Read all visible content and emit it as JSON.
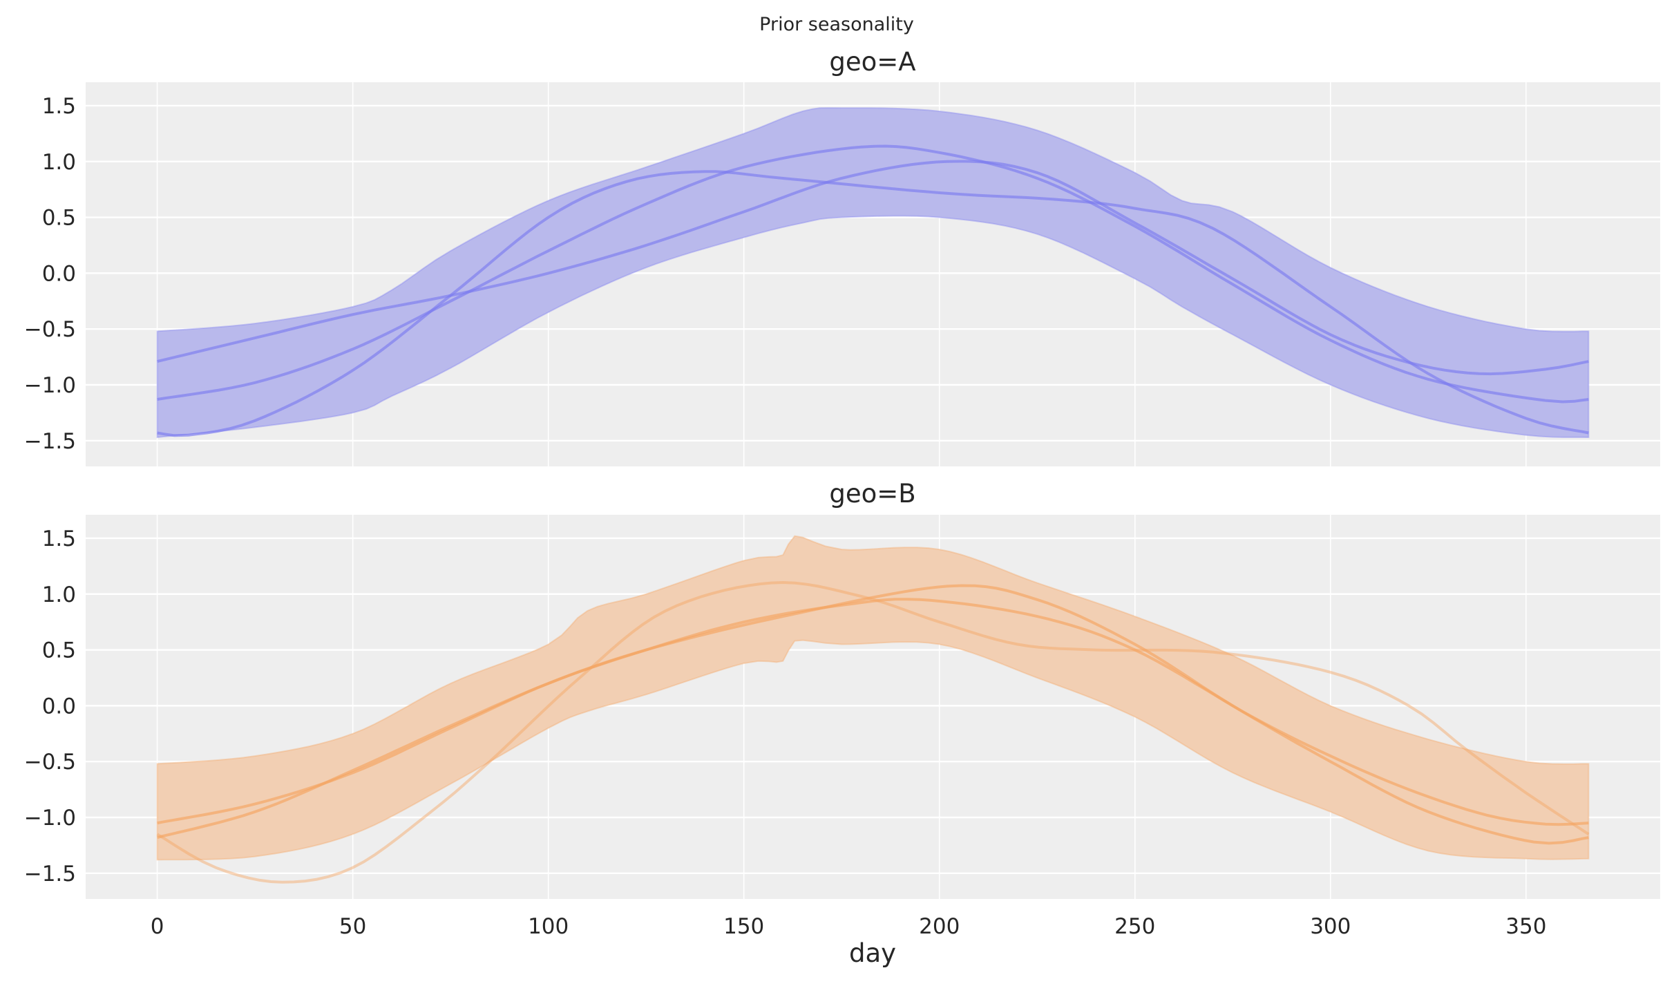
{
  "chart_data": [
    {
      "type": "line",
      "title": "geo=A",
      "figure_title": "Prior seasonality",
      "xlabel": "",
      "ylabel": "",
      "xlim": [
        -18.3,
        384.3
      ],
      "ylim": [
        -1.73,
        1.71
      ],
      "xticks": [
        0,
        50,
        100,
        150,
        200,
        250,
        300,
        350
      ],
      "yticks": [
        -1.5,
        -1.0,
        -0.5,
        0.0,
        0.5,
        1.0,
        1.5
      ],
      "ytick_labels": [
        "−1.5",
        "−1.0",
        "−0.5",
        "0.0",
        "0.5",
        "1.0",
        "1.5"
      ],
      "show_xtick_labels": false,
      "grid": true,
      "color": "#7b7bf0",
      "band_color": "#b9b9ec",
      "band": {
        "x": [
          0,
          25,
          50,
          60,
          75,
          100,
          125,
          150,
          165,
          175,
          200,
          225,
          250,
          262,
          275,
          300,
          325,
          350,
          366
        ],
        "lower": [
          -1.47,
          -1.38,
          -1.25,
          -1.1,
          -0.85,
          -0.35,
          0.05,
          0.32,
          0.45,
          0.5,
          0.5,
          0.35,
          -0.05,
          -0.3,
          -0.55,
          -1.0,
          -1.3,
          -1.45,
          -1.47
        ],
        "upper": [
          -0.52,
          -0.45,
          -0.3,
          -0.15,
          0.2,
          0.65,
          0.95,
          1.25,
          1.45,
          1.48,
          1.45,
          1.28,
          0.9,
          0.65,
          0.55,
          0.05,
          -0.3,
          -0.5,
          -0.52
        ]
      },
      "series": [
        {
          "x": [
            0,
            25,
            50,
            75,
            100,
            125,
            150,
            175,
            202,
            225,
            250,
            275,
            300,
            320,
            338,
            355,
            366
          ],
          "y": [
            -0.79,
            -0.58,
            -0.37,
            -0.2,
            0.0,
            0.25,
            0.55,
            0.85,
            1.0,
            0.9,
            0.45,
            -0.05,
            -0.55,
            -0.8,
            -0.9,
            -0.86,
            -0.79
          ]
        },
        {
          "x": [
            0,
            25,
            50,
            75,
            100,
            125,
            150,
            180,
            200,
            225,
            250,
            275,
            300,
            325,
            355,
            366
          ],
          "y": [
            -1.13,
            -0.98,
            -0.68,
            -0.25,
            0.2,
            0.62,
            0.95,
            1.13,
            1.08,
            0.85,
            0.42,
            -0.1,
            -0.6,
            -0.95,
            -1.14,
            -1.13
          ]
        },
        {
          "x": [
            0,
            8,
            25,
            50,
            75,
            100,
            120,
            140,
            160,
            200,
            230,
            250,
            270,
            300,
            325,
            350,
            366
          ],
          "y": [
            -1.43,
            -1.45,
            -1.32,
            -0.87,
            -0.2,
            0.5,
            0.82,
            0.91,
            0.85,
            0.72,
            0.66,
            0.58,
            0.4,
            -0.3,
            -0.9,
            -1.3,
            -1.43
          ]
        }
      ]
    },
    {
      "type": "line",
      "title": "geo=B",
      "xlabel": "day",
      "ylabel": "",
      "xlim": [
        -18.3,
        384.3
      ],
      "ylim": [
        -1.73,
        1.71
      ],
      "xticks": [
        0,
        50,
        100,
        150,
        200,
        250,
        300,
        350
      ],
      "yticks": [
        -1.5,
        -1.0,
        -0.5,
        0.0,
        0.5,
        1.0,
        1.5
      ],
      "ytick_labels": [
        "−1.5",
        "−1.0",
        "−0.5",
        "0.0",
        "0.5",
        "1.0",
        "1.5"
      ],
      "show_xtick_labels": true,
      "grid": true,
      "color": "#f4a461",
      "band_color": "#f2cfb3",
      "band": {
        "x": [
          0,
          25,
          50,
          75,
          100,
          110,
          125,
          150,
          160,
          163,
          175,
          200,
          225,
          250,
          275,
          300,
          325,
          350,
          366
        ],
        "lower": [
          -1.38,
          -1.35,
          -1.15,
          -0.7,
          -0.2,
          -0.05,
          0.1,
          0.38,
          0.4,
          0.58,
          0.55,
          0.55,
          0.25,
          -0.1,
          -0.6,
          -0.95,
          -1.3,
          -1.37,
          -1.37
        ],
        "upper": [
          -0.52,
          -0.45,
          -0.25,
          0.2,
          0.55,
          0.85,
          1.0,
          1.3,
          1.35,
          1.52,
          1.4,
          1.4,
          1.1,
          0.8,
          0.45,
          0.0,
          -0.3,
          -0.5,
          -0.52
        ]
      },
      "series": [
        {
          "x": [
            0,
            25,
            50,
            75,
            100,
            125,
            150,
            175,
            195,
            225,
            250,
            280,
            300,
            320,
            340,
            355,
            366
          ],
          "y": [
            -1.05,
            -0.88,
            -0.6,
            -0.2,
            0.2,
            0.5,
            0.75,
            0.9,
            0.95,
            0.8,
            0.5,
            -0.1,
            -0.45,
            -0.75,
            -0.98,
            -1.06,
            -1.05
          ]
        },
        {
          "x": [
            0,
            25,
            50,
            75,
            100,
            125,
            160,
            202,
            225,
            250,
            275,
            300,
            325,
            352,
            366
          ],
          "y": [
            -1.18,
            -0.95,
            -0.58,
            -0.18,
            0.2,
            0.5,
            0.8,
            1.07,
            0.95,
            0.55,
            0.0,
            -0.5,
            -0.95,
            -1.22,
            -1.18
          ]
        },
        {
          "x": [
            0,
            15,
            32,
            50,
            70,
            85,
            108,
            130,
            157,
            180,
            200,
            220,
            240,
            270,
            300,
            320,
            335,
            350,
            366
          ],
          "y": [
            -1.15,
            -1.45,
            -1.58,
            -1.45,
            -0.95,
            -0.5,
            0.25,
            0.85,
            1.1,
            0.98,
            0.75,
            0.55,
            0.5,
            0.48,
            0.3,
            0.0,
            -0.4,
            -0.78,
            -1.15
          ]
        }
      ]
    }
  ]
}
